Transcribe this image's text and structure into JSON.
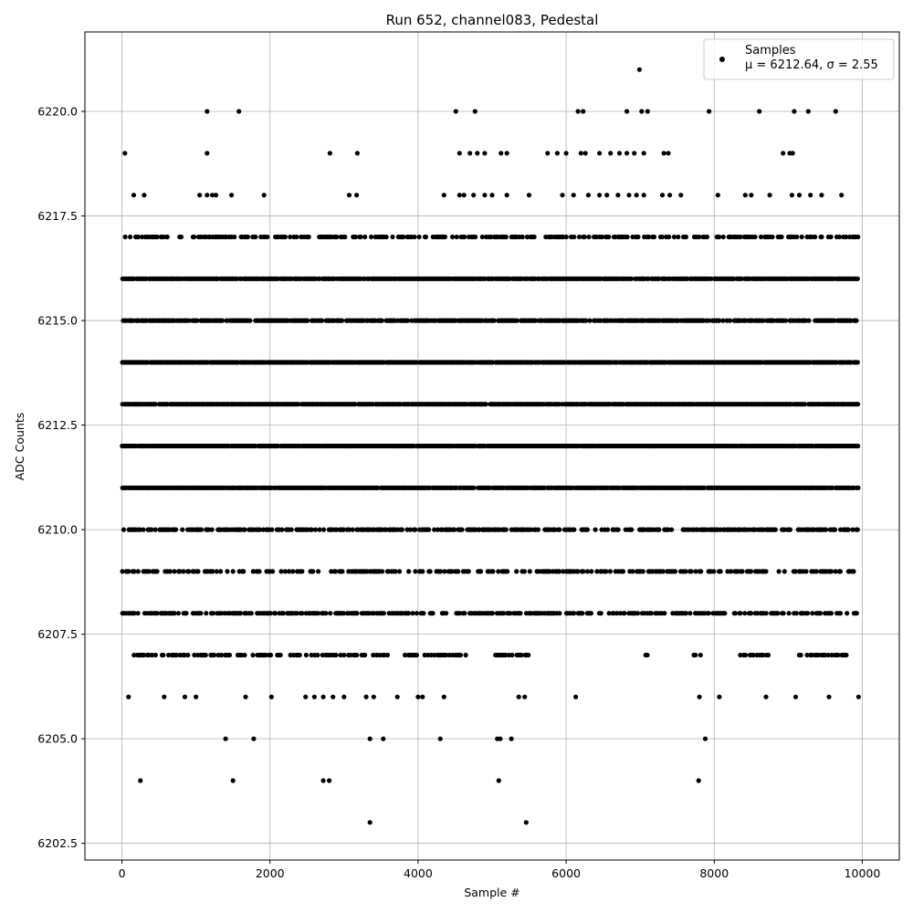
{
  "chart_data": {
    "type": "scatter",
    "title": "Run 652, channel083, Pedestal",
    "xlabel": "Sample #",
    "ylabel": "ADC Counts",
    "xlim": [
      -500,
      10500
    ],
    "ylim": [
      6202.1,
      6221.9
    ],
    "xticks": [
      0,
      2000,
      4000,
      6000,
      8000,
      10000
    ],
    "yticks": [
      6202.5,
      6205.0,
      6207.5,
      6210.0,
      6212.5,
      6215.0,
      6217.5,
      6220.0
    ],
    "xtick_labels": [
      "0",
      "2000",
      "4000",
      "6000",
      "8000",
      "10000"
    ],
    "ytick_labels": [
      "6202.5",
      "6205.0",
      "6207.5",
      "6210.0",
      "6212.5",
      "6215.0",
      "6217.5",
      "6220.0"
    ],
    "grid": true,
    "legend_placement": "top-right",
    "series": [
      {
        "name": "Samples",
        "stats_label": "μ = 6212.64, σ = 2.55",
        "color": "#000000",
        "marker": "circle",
        "n_points": 10000,
        "mean": 6212.64,
        "sigma": 2.55,
        "dense_levels": [
          6208,
          6209,
          6210,
          6211,
          6212,
          6213,
          6214,
          6215,
          6216,
          6217
        ],
        "sparse_points": [
          [
            40,
            6219
          ],
          [
            1150,
            6219
          ],
          [
            2810,
            6219
          ],
          [
            3180,
            6219
          ],
          [
            4560,
            6219
          ],
          [
            4700,
            6219
          ],
          [
            4800,
            6219
          ],
          [
            4900,
            6219
          ],
          [
            5120,
            6219
          ],
          [
            5200,
            6219
          ],
          [
            5750,
            6219
          ],
          [
            5880,
            6219
          ],
          [
            6000,
            6219
          ],
          [
            6200,
            6219
          ],
          [
            6260,
            6219
          ],
          [
            6450,
            6219
          ],
          [
            6600,
            6219
          ],
          [
            6720,
            6219
          ],
          [
            6820,
            6219
          ],
          [
            6920,
            6219
          ],
          [
            7050,
            6219
          ],
          [
            7320,
            6219
          ],
          [
            7380,
            6219
          ],
          [
            8930,
            6219
          ],
          [
            9020,
            6219
          ],
          [
            9060,
            6219
          ],
          [
            160,
            6218
          ],
          [
            300,
            6218
          ],
          [
            1050,
            6218
          ],
          [
            1150,
            6218
          ],
          [
            1220,
            6218
          ],
          [
            1270,
            6218
          ],
          [
            1480,
            6218
          ],
          [
            1920,
            6218
          ],
          [
            3070,
            6218
          ],
          [
            3170,
            6218
          ],
          [
            4350,
            6218
          ],
          [
            4560,
            6218
          ],
          [
            4620,
            6218
          ],
          [
            4750,
            6218
          ],
          [
            4900,
            6218
          ],
          [
            5000,
            6218
          ],
          [
            5200,
            6218
          ],
          [
            5500,
            6218
          ],
          [
            5950,
            6218
          ],
          [
            6100,
            6218
          ],
          [
            6300,
            6218
          ],
          [
            6450,
            6218
          ],
          [
            6550,
            6218
          ],
          [
            6700,
            6218
          ],
          [
            6850,
            6218
          ],
          [
            6950,
            6218
          ],
          [
            7050,
            6218
          ],
          [
            7300,
            6218
          ],
          [
            7400,
            6218
          ],
          [
            7550,
            6218
          ],
          [
            8050,
            6218
          ],
          [
            8420,
            6218
          ],
          [
            8500,
            6218
          ],
          [
            8750,
            6218
          ],
          [
            9050,
            6218
          ],
          [
            9150,
            6218
          ],
          [
            9300,
            6218
          ],
          [
            9450,
            6218
          ],
          [
            9720,
            6218
          ],
          [
            90,
            6206
          ],
          [
            570,
            6206
          ],
          [
            850,
            6206
          ],
          [
            1000,
            6206
          ],
          [
            1670,
            6206
          ],
          [
            2020,
            6206
          ],
          [
            2480,
            6206
          ],
          [
            2600,
            6206
          ],
          [
            2720,
            6206
          ],
          [
            2850,
            6206
          ],
          [
            3000,
            6206
          ],
          [
            3300,
            6206
          ],
          [
            3400,
            6206
          ],
          [
            3720,
            6206
          ],
          [
            4000,
            6206
          ],
          [
            4060,
            6206
          ],
          [
            4350,
            6206
          ],
          [
            5360,
            6206
          ],
          [
            5440,
            6206
          ],
          [
            6130,
            6206
          ],
          [
            7800,
            6206
          ],
          [
            8070,
            6206
          ],
          [
            8700,
            6206
          ],
          [
            9100,
            6206
          ],
          [
            9550,
            6206
          ],
          [
            9950,
            6206
          ],
          [
            1400,
            6205
          ],
          [
            1780,
            6205
          ],
          [
            3350,
            6205
          ],
          [
            3530,
            6205
          ],
          [
            4300,
            6205
          ],
          [
            5070,
            6205
          ],
          [
            5110,
            6205
          ],
          [
            5260,
            6205
          ],
          [
            7880,
            6205
          ],
          [
            250,
            6204
          ],
          [
            1500,
            6204
          ],
          [
            2720,
            6204
          ],
          [
            2800,
            6204
          ],
          [
            5090,
            6204
          ],
          [
            7790,
            6204
          ],
          [
            3350,
            6203
          ],
          [
            5460,
            6203
          ],
          [
            1150,
            6220
          ],
          [
            1580,
            6220
          ],
          [
            4510,
            6220
          ],
          [
            4770,
            6220
          ],
          [
            6160,
            6220
          ],
          [
            6230,
            6220
          ],
          [
            6820,
            6220
          ],
          [
            7020,
            6220
          ],
          [
            7100,
            6220
          ],
          [
            7930,
            6220
          ],
          [
            8610,
            6220
          ],
          [
            9080,
            6220
          ],
          [
            9270,
            6220
          ],
          [
            9640,
            6220
          ],
          [
            6990,
            6221
          ]
        ],
        "sparse_bands": {
          "6207": [
            [
              140,
              1250
            ],
            [
              1300,
              3650
            ],
            [
              3800,
              4700
            ],
            [
              5000,
              5500
            ],
            [
              6200,
              6200
            ],
            [
              7070,
              7130
            ],
            [
              7720,
              7830
            ],
            [
              8350,
              8750
            ],
            [
              9100,
              9820
            ]
          ]
        }
      }
    ]
  }
}
